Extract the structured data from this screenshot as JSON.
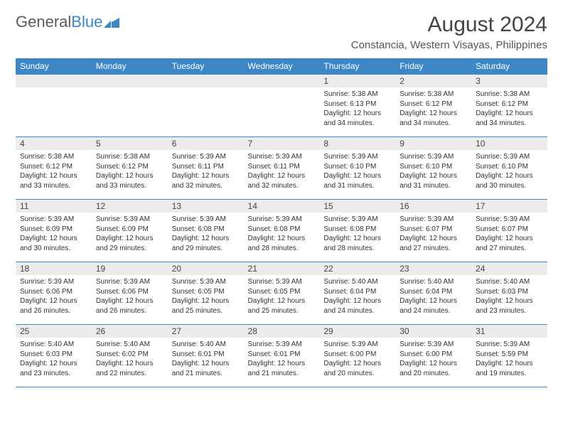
{
  "logo": {
    "text1": "General",
    "text2": "Blue"
  },
  "title": "August 2024",
  "location": "Constancia, Western Visayas, Philippines",
  "columns": [
    "Sunday",
    "Monday",
    "Tuesday",
    "Wednesday",
    "Thursday",
    "Friday",
    "Saturday"
  ],
  "colors": {
    "header_bg": "#3d87c7",
    "header_text": "#ffffff",
    "daynum_bg": "#ececec",
    "border": "#3d87c7"
  },
  "weeks": [
    [
      {
        "num": "",
        "lines": []
      },
      {
        "num": "",
        "lines": []
      },
      {
        "num": "",
        "lines": []
      },
      {
        "num": "",
        "lines": []
      },
      {
        "num": "1",
        "lines": [
          "Sunrise: 5:38 AM",
          "Sunset: 6:13 PM",
          "Daylight: 12 hours and 34 minutes."
        ]
      },
      {
        "num": "2",
        "lines": [
          "Sunrise: 5:38 AM",
          "Sunset: 6:12 PM",
          "Daylight: 12 hours and 34 minutes."
        ]
      },
      {
        "num": "3",
        "lines": [
          "Sunrise: 5:38 AM",
          "Sunset: 6:12 PM",
          "Daylight: 12 hours and 34 minutes."
        ]
      }
    ],
    [
      {
        "num": "4",
        "lines": [
          "Sunrise: 5:38 AM",
          "Sunset: 6:12 PM",
          "Daylight: 12 hours and 33 minutes."
        ]
      },
      {
        "num": "5",
        "lines": [
          "Sunrise: 5:38 AM",
          "Sunset: 6:12 PM",
          "Daylight: 12 hours and 33 minutes."
        ]
      },
      {
        "num": "6",
        "lines": [
          "Sunrise: 5:39 AM",
          "Sunset: 6:11 PM",
          "Daylight: 12 hours and 32 minutes."
        ]
      },
      {
        "num": "7",
        "lines": [
          "Sunrise: 5:39 AM",
          "Sunset: 6:11 PM",
          "Daylight: 12 hours and 32 minutes."
        ]
      },
      {
        "num": "8",
        "lines": [
          "Sunrise: 5:39 AM",
          "Sunset: 6:10 PM",
          "Daylight: 12 hours and 31 minutes."
        ]
      },
      {
        "num": "9",
        "lines": [
          "Sunrise: 5:39 AM",
          "Sunset: 6:10 PM",
          "Daylight: 12 hours and 31 minutes."
        ]
      },
      {
        "num": "10",
        "lines": [
          "Sunrise: 5:39 AM",
          "Sunset: 6:10 PM",
          "Daylight: 12 hours and 30 minutes."
        ]
      }
    ],
    [
      {
        "num": "11",
        "lines": [
          "Sunrise: 5:39 AM",
          "Sunset: 6:09 PM",
          "Daylight: 12 hours and 30 minutes."
        ]
      },
      {
        "num": "12",
        "lines": [
          "Sunrise: 5:39 AM",
          "Sunset: 6:09 PM",
          "Daylight: 12 hours and 29 minutes."
        ]
      },
      {
        "num": "13",
        "lines": [
          "Sunrise: 5:39 AM",
          "Sunset: 6:08 PM",
          "Daylight: 12 hours and 29 minutes."
        ]
      },
      {
        "num": "14",
        "lines": [
          "Sunrise: 5:39 AM",
          "Sunset: 6:08 PM",
          "Daylight: 12 hours and 28 minutes."
        ]
      },
      {
        "num": "15",
        "lines": [
          "Sunrise: 5:39 AM",
          "Sunset: 6:08 PM",
          "Daylight: 12 hours and 28 minutes."
        ]
      },
      {
        "num": "16",
        "lines": [
          "Sunrise: 5:39 AM",
          "Sunset: 6:07 PM",
          "Daylight: 12 hours and 27 minutes."
        ]
      },
      {
        "num": "17",
        "lines": [
          "Sunrise: 5:39 AM",
          "Sunset: 6:07 PM",
          "Daylight: 12 hours and 27 minutes."
        ]
      }
    ],
    [
      {
        "num": "18",
        "lines": [
          "Sunrise: 5:39 AM",
          "Sunset: 6:06 PM",
          "Daylight: 12 hours and 26 minutes."
        ]
      },
      {
        "num": "19",
        "lines": [
          "Sunrise: 5:39 AM",
          "Sunset: 6:06 PM",
          "Daylight: 12 hours and 26 minutes."
        ]
      },
      {
        "num": "20",
        "lines": [
          "Sunrise: 5:39 AM",
          "Sunset: 6:05 PM",
          "Daylight: 12 hours and 25 minutes."
        ]
      },
      {
        "num": "21",
        "lines": [
          "Sunrise: 5:39 AM",
          "Sunset: 6:05 PM",
          "Daylight: 12 hours and 25 minutes."
        ]
      },
      {
        "num": "22",
        "lines": [
          "Sunrise: 5:40 AM",
          "Sunset: 6:04 PM",
          "Daylight: 12 hours and 24 minutes."
        ]
      },
      {
        "num": "23",
        "lines": [
          "Sunrise: 5:40 AM",
          "Sunset: 6:04 PM",
          "Daylight: 12 hours and 24 minutes."
        ]
      },
      {
        "num": "24",
        "lines": [
          "Sunrise: 5:40 AM",
          "Sunset: 6:03 PM",
          "Daylight: 12 hours and 23 minutes."
        ]
      }
    ],
    [
      {
        "num": "25",
        "lines": [
          "Sunrise: 5:40 AM",
          "Sunset: 6:03 PM",
          "Daylight: 12 hours and 23 minutes."
        ]
      },
      {
        "num": "26",
        "lines": [
          "Sunrise: 5:40 AM",
          "Sunset: 6:02 PM",
          "Daylight: 12 hours and 22 minutes."
        ]
      },
      {
        "num": "27",
        "lines": [
          "Sunrise: 5:40 AM",
          "Sunset: 6:01 PM",
          "Daylight: 12 hours and 21 minutes."
        ]
      },
      {
        "num": "28",
        "lines": [
          "Sunrise: 5:39 AM",
          "Sunset: 6:01 PM",
          "Daylight: 12 hours and 21 minutes."
        ]
      },
      {
        "num": "29",
        "lines": [
          "Sunrise: 5:39 AM",
          "Sunset: 6:00 PM",
          "Daylight: 12 hours and 20 minutes."
        ]
      },
      {
        "num": "30",
        "lines": [
          "Sunrise: 5:39 AM",
          "Sunset: 6:00 PM",
          "Daylight: 12 hours and 20 minutes."
        ]
      },
      {
        "num": "31",
        "lines": [
          "Sunrise: 5:39 AM",
          "Sunset: 5:59 PM",
          "Daylight: 12 hours and 19 minutes."
        ]
      }
    ]
  ]
}
